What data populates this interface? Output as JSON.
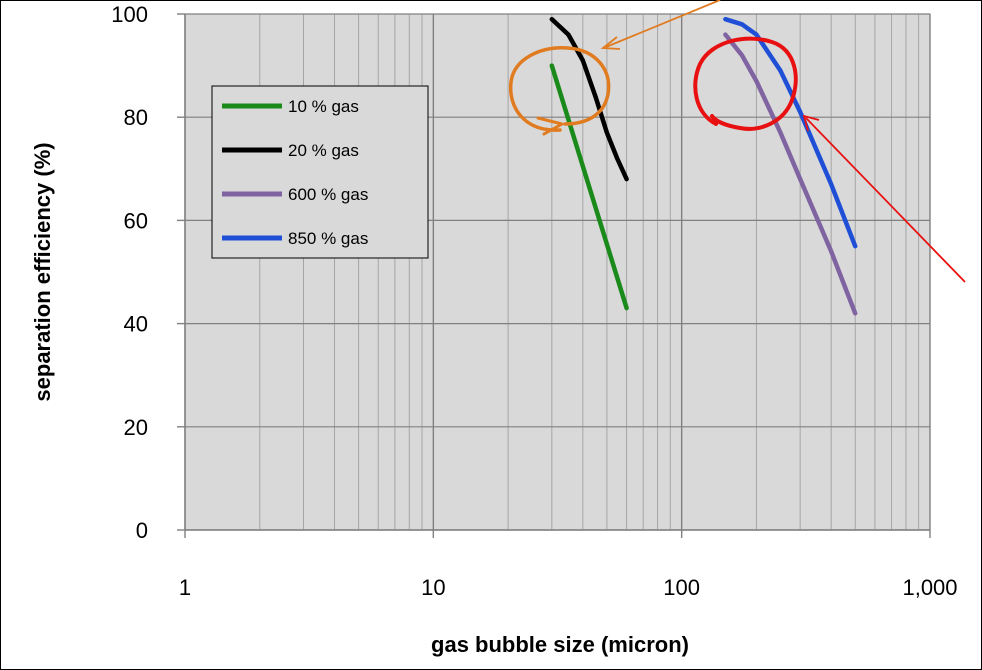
{
  "chart_data": {
    "type": "line",
    "x_scale": "log",
    "xlabel": "gas bubble size (micron)",
    "ylabel": "separation efficiency (%)",
    "xlim": [
      1,
      1000
    ],
    "ylim": [
      0,
      100
    ],
    "x_ticks": [
      "1",
      "10",
      "100",
      "1,000"
    ],
    "y_ticks": [
      "0",
      "20",
      "40",
      "60",
      "80",
      "100"
    ],
    "grid": true,
    "legend_position": "top-left",
    "series": [
      {
        "name": "10 % gas",
        "color": "#1a8a1a",
        "x": [
          30,
          60
        ],
        "y": [
          90,
          43
        ]
      },
      {
        "name": "20 % gas",
        "color": "#000000",
        "x": [
          30,
          35,
          40,
          45,
          50,
          55,
          60
        ],
        "y": [
          99,
          96,
          91,
          84,
          77,
          72,
          68
        ]
      },
      {
        "name": "600 % gas",
        "color": "#8064a2",
        "x": [
          150,
          175,
          200,
          250,
          300,
          400,
          500
        ],
        "y": [
          96,
          92,
          87,
          77,
          68,
          54,
          42
        ]
      },
      {
        "name": "850 % gas",
        "color": "#1f4fd6",
        "x": [
          150,
          175,
          200,
          250,
          300,
          400,
          500
        ],
        "y": [
          99,
          98,
          96,
          89,
          81,
          67,
          55
        ]
      }
    ],
    "annotations": [
      {
        "type": "circle",
        "color": "#e07b20"
      },
      {
        "type": "circle",
        "color": "#e81010"
      },
      {
        "type": "arrow",
        "color": "#e07b20"
      },
      {
        "type": "arrow",
        "color": "#e81010"
      }
    ]
  }
}
